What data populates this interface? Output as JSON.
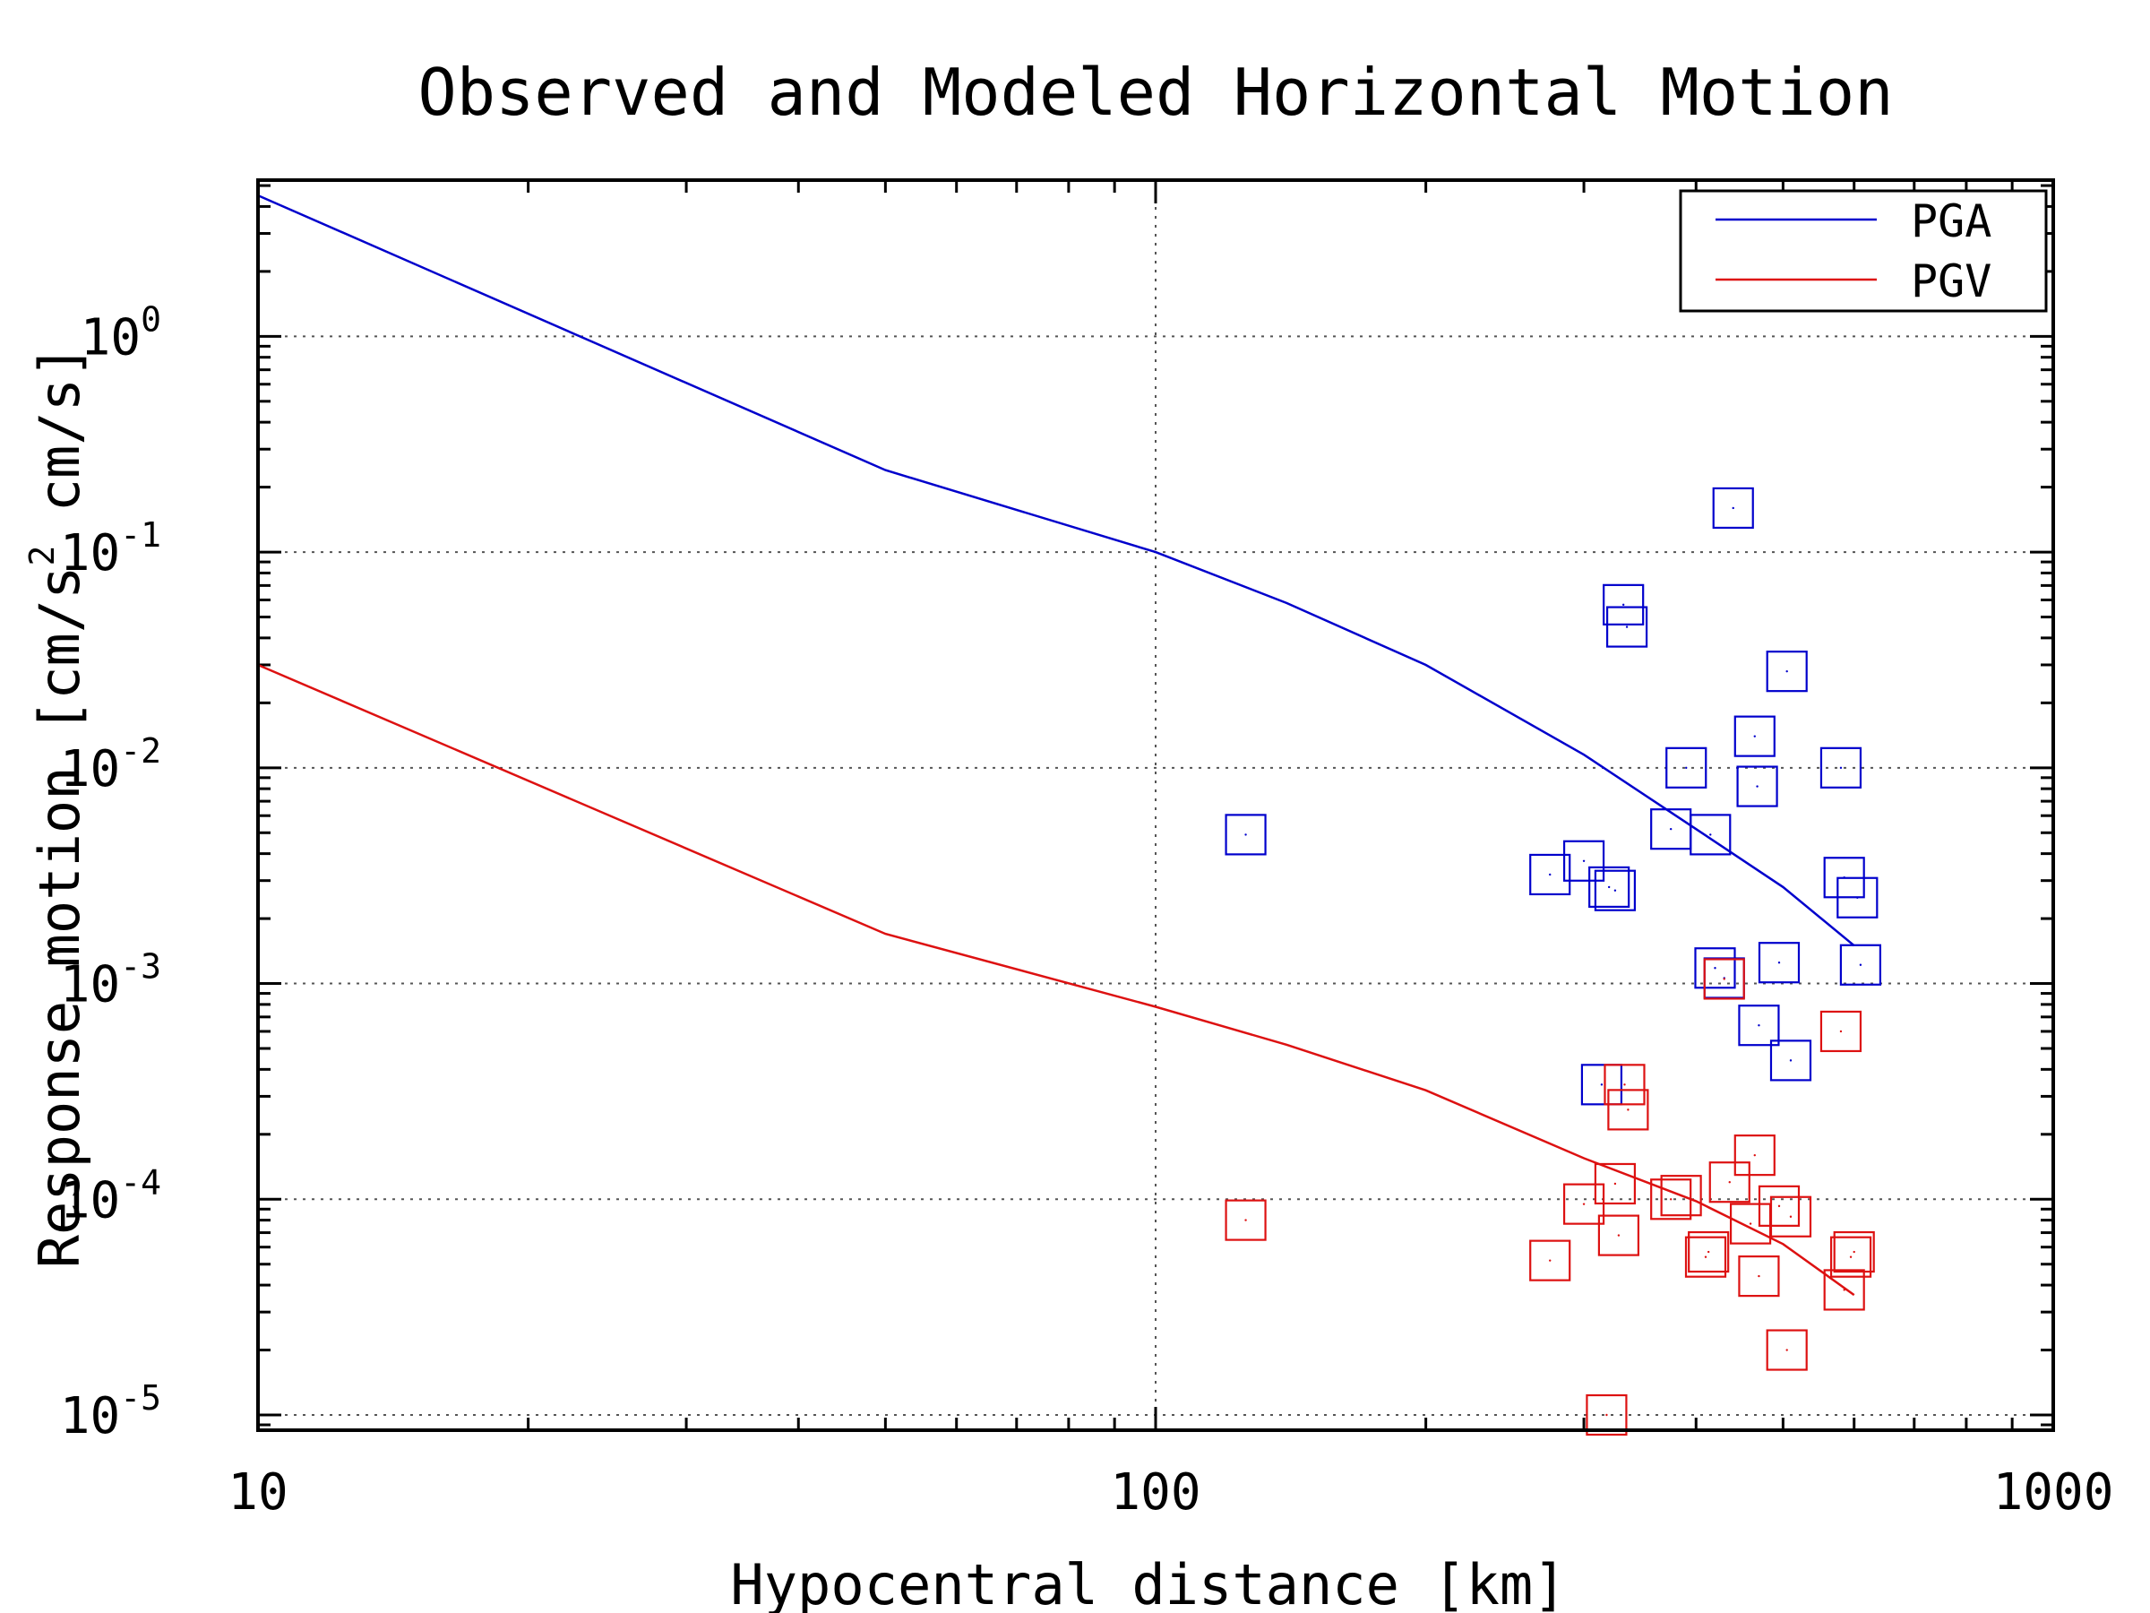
{
  "chart_data": {
    "type": "scatter",
    "title": "Observed and Modeled Horizontal Motion",
    "xlabel": "Hypocentral distance [km]",
    "ylabel": {
      "prefix": "Response motion [cm/s",
      "superscript": "2",
      "suffix": "  cm/s]"
    },
    "x_scale": "log",
    "y_scale": "log",
    "xlim": [
      10,
      1000
    ],
    "ylim": [
      8.5e-06,
      5.3
    ],
    "x_ticks": [
      {
        "value": 10,
        "label": "10"
      },
      {
        "value": 100,
        "label": "100"
      },
      {
        "value": 1000,
        "label": "1000"
      }
    ],
    "y_ticks": [
      {
        "value": 1,
        "base": "10",
        "exp": "0"
      },
      {
        "value": 0.1,
        "base": "10",
        "exp": "-1"
      },
      {
        "value": 0.01,
        "base": "10",
        "exp": "-2"
      },
      {
        "value": 0.001,
        "base": "10",
        "exp": "-3"
      },
      {
        "value": 0.0001,
        "base": "10",
        "exp": "-4"
      },
      {
        "value": 1e-05,
        "base": "10",
        "exp": "-5"
      }
    ],
    "grid": true,
    "legend_position": "top-right",
    "series": [
      {
        "name": "PGA",
        "color": "#0000cc",
        "model": [
          [
            10,
            4.5
          ],
          [
            50,
            0.24
          ],
          [
            100,
            0.1
          ],
          [
            140,
            0.058
          ],
          [
            200,
            0.03
          ],
          [
            300,
            0.0115
          ],
          [
            400,
            0.0052
          ],
          [
            500,
            0.0028
          ],
          [
            600,
            0.0015
          ]
        ],
        "observed": [
          [
            126,
            0.0049
          ],
          [
            275,
            0.0032
          ],
          [
            300,
            0.0037
          ],
          [
            320,
            0.0028
          ],
          [
            325,
            0.0027
          ],
          [
            332,
            0.057
          ],
          [
            335,
            0.045
          ],
          [
            314,
            0.00034
          ],
          [
            390,
            0.01
          ],
          [
            375,
            0.0052
          ],
          [
            415,
            0.0049
          ],
          [
            420,
            0.00118
          ],
          [
            430,
            0.00106
          ],
          [
            440,
            0.16
          ],
          [
            465,
            0.014
          ],
          [
            468,
            0.0082
          ],
          [
            470,
            0.00064
          ],
          [
            495,
            0.00125
          ],
          [
            505,
            0.028
          ],
          [
            510,
            0.00044
          ],
          [
            580,
            0.01
          ],
          [
            585,
            0.0031
          ],
          [
            605,
            0.0025
          ],
          [
            610,
            0.00122
          ]
        ]
      },
      {
        "name": "PGV",
        "color": "#dd1111",
        "model": [
          [
            10,
            0.03
          ],
          [
            50,
            0.0017
          ],
          [
            100,
            0.00078
          ],
          [
            140,
            0.00052
          ],
          [
            200,
            0.00032
          ],
          [
            300,
            0.000155
          ],
          [
            400,
            9.8e-05
          ],
          [
            500,
            6.2e-05
          ],
          [
            600,
            3.6e-05
          ]
        ],
        "observed": [
          [
            126,
            8e-05
          ],
          [
            275,
            5.2e-05
          ],
          [
            300,
            9.5e-05
          ],
          [
            318,
            1e-05
          ],
          [
            325,
            0.000118
          ],
          [
            328,
            6.8e-05
          ],
          [
            333,
            0.00034
          ],
          [
            336,
            0.00026
          ],
          [
            375,
            0.0001
          ],
          [
            385,
            0.000104
          ],
          [
            410,
            5.4e-05
          ],
          [
            413,
            5.7e-05
          ],
          [
            430,
            0.00105
          ],
          [
            436,
            0.00012
          ],
          [
            460,
            7.7e-05
          ],
          [
            465,
            0.00016
          ],
          [
            470,
            4.4e-05
          ],
          [
            495,
            9.3e-05
          ],
          [
            505,
            2e-05
          ],
          [
            510,
            8.3e-05
          ],
          [
            580,
            0.0006
          ],
          [
            585,
            3.8e-05
          ],
          [
            595,
            5.4e-05
          ],
          [
            600,
            5.7e-05
          ]
        ]
      }
    ]
  }
}
